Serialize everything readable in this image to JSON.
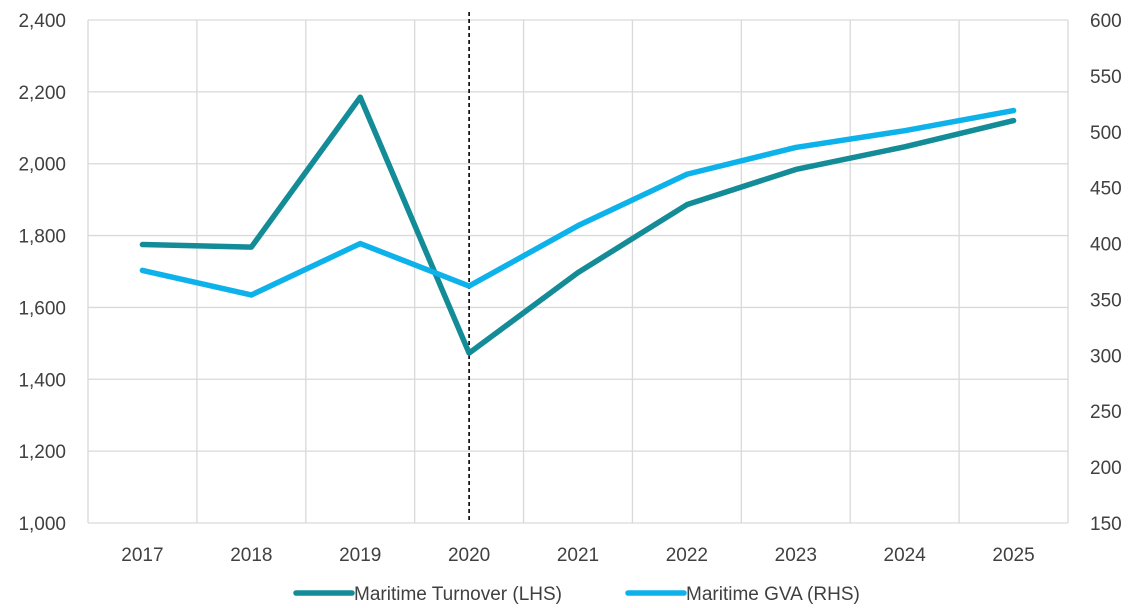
{
  "chart_data": {
    "type": "line",
    "title": "",
    "xlabel": "",
    "ylabel": "",
    "categories": [
      "2017",
      "2018",
      "2019",
      "2020",
      "2021",
      "2022",
      "2023",
      "2024",
      "2025"
    ],
    "y_left": {
      "range": [
        1000,
        2400
      ],
      "ticks": [
        1000,
        1200,
        1400,
        1600,
        1800,
        2000,
        2200,
        2400
      ],
      "tick_labels": [
        "1,000",
        "1,200",
        "1,400",
        "1,600",
        "1,800",
        "2,000",
        "2,200",
        "2,400"
      ]
    },
    "y_right": {
      "range": [
        150,
        600
      ],
      "ticks": [
        150,
        200,
        250,
        300,
        350,
        400,
        450,
        500,
        550,
        600
      ],
      "tick_labels": [
        "150",
        "200",
        "250",
        "300",
        "350",
        "400",
        "450",
        "500",
        "550",
        "600"
      ]
    },
    "series": [
      {
        "name": "Maritime Turnover (LHS)",
        "axis": "left",
        "color": "#138c97",
        "values": [
          1775,
          1768,
          2185,
          1473,
          1697,
          1886,
          1984,
          2047,
          2120
        ]
      },
      {
        "name": "Maritime GVA (RHS)",
        "axis": "right",
        "color": "#0eb2ea",
        "values": [
          376,
          354,
          400,
          362,
          416,
          462,
          486,
          501,
          519
        ]
      }
    ],
    "reference_line": {
      "category": "2020",
      "style": "dashed",
      "color": "#000000"
    },
    "grid": true,
    "legend": "bottom-center"
  }
}
